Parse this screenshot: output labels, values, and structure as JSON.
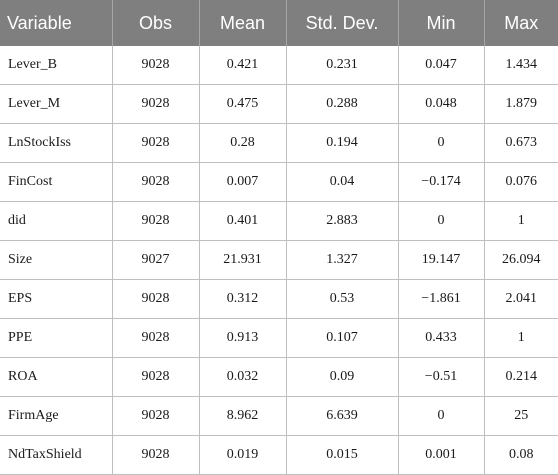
{
  "table": {
    "headers": [
      "Variable",
      "Obs",
      "Mean",
      "Std. Dev.",
      "Min",
      "Max"
    ],
    "rows": [
      [
        "Lever_B",
        "9028",
        "0.421",
        "0.231",
        "0.047",
        "1.434"
      ],
      [
        "Lever_M",
        "9028",
        "0.475",
        "0.288",
        "0.048",
        "1.879"
      ],
      [
        "LnStockIss",
        "9028",
        "0.28",
        "0.194",
        "0",
        "0.673"
      ],
      [
        "FinCost",
        "9028",
        "0.007",
        "0.04",
        "−0.174",
        "0.076"
      ],
      [
        "did",
        "9028",
        "0.401",
        "2.883",
        "0",
        "1"
      ],
      [
        "Size",
        "9027",
        "21.931",
        "1.327",
        "19.147",
        "26.094"
      ],
      [
        "EPS",
        "9028",
        "0.312",
        "0.53",
        "−1.861",
        "2.041"
      ],
      [
        "PPE",
        "9028",
        "0.913",
        "0.107",
        "0.433",
        "1"
      ],
      [
        "ROA",
        "9028",
        "0.032",
        "0.09",
        "−0.51",
        "0.214"
      ],
      [
        "FirmAge",
        "9028",
        "8.962",
        "6.639",
        "0",
        "25"
      ],
      [
        "NdTaxShield",
        "9028",
        "0.019",
        "0.015",
        "0.001",
        "0.08"
      ]
    ]
  }
}
